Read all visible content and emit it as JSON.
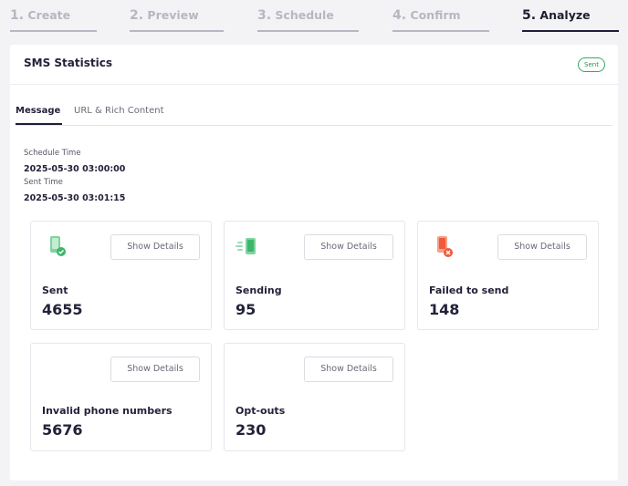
{
  "steps": [
    {
      "num": "1.",
      "label": "Create"
    },
    {
      "num": "2.",
      "label": "Preview"
    },
    {
      "num": "3.",
      "label": "Schedule"
    },
    {
      "num": "4.",
      "label": "Confirm"
    },
    {
      "num": "5.",
      "label": "Analyze"
    }
  ],
  "card": {
    "title": "SMS Statistics",
    "status_badge": "Sent"
  },
  "tabs": [
    {
      "label": "Message"
    },
    {
      "label": "URL & Rich Content"
    }
  ],
  "schedule": {
    "schedule_label": "Schedule Time",
    "schedule_value": "2025-05-30 03:00:00",
    "sent_label": "Sent Time",
    "sent_value": "2025-05-30 03:01:15"
  },
  "stats": [
    {
      "label": "Sent",
      "value": "4655",
      "button": "Show Details",
      "icon": "phone-check-icon"
    },
    {
      "label": "Sending",
      "value": "95",
      "button": "Show Details",
      "icon": "phone-sending-icon"
    },
    {
      "label": "Failed to send",
      "value": "148",
      "button": "Show Details",
      "icon": "phone-failed-icon"
    },
    {
      "label": "Invalid phone numbers",
      "value": "5676",
      "button": "Show Details",
      "icon": ""
    },
    {
      "label": "Opt-outs",
      "value": "230",
      "button": "Show Details",
      "icon": ""
    }
  ],
  "colors": {
    "success": "#3db66a",
    "danger": "#ef5a3c",
    "accent": "#1e1e3a"
  }
}
